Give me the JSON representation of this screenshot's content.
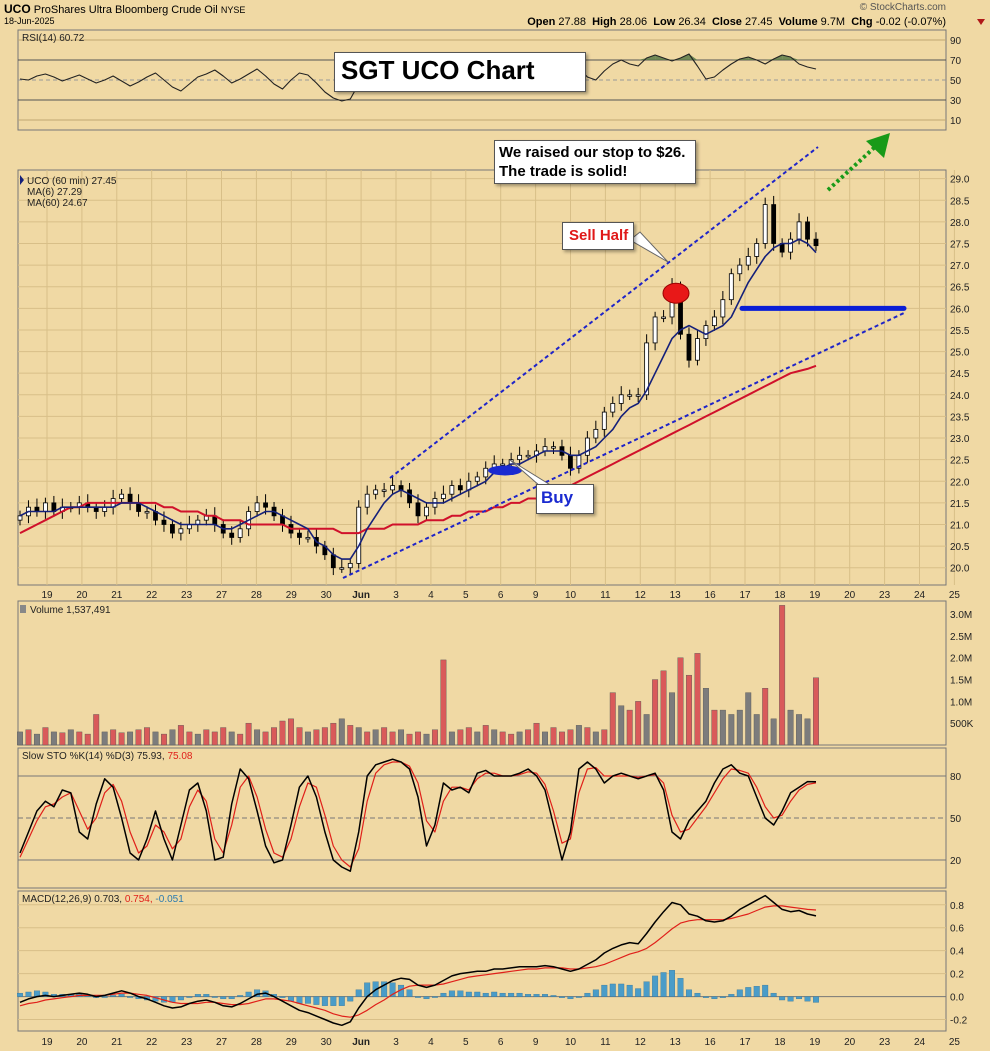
{
  "header": {
    "symbol": "UCO",
    "name": "ProShares Ultra Bloomberg Crude Oil",
    "exchange": "NYSE",
    "date": "18-Jun-2025",
    "open_label": "Open",
    "open": "27.88",
    "high_label": "High",
    "high": "28.06",
    "low_label": "Low",
    "low": "26.34",
    "close_label": "Close",
    "close": "27.45",
    "volume_label": "Volume",
    "volume": "9.7M",
    "chg_label": "Chg",
    "chg": "-0.02 (-0.07%)",
    "source": "© StockCharts.com"
  },
  "annotations": {
    "title": "SGT UCO Chart",
    "stop_note": "We raised our stop to $26.  The trade is solid!",
    "sell_label": "Sell Half",
    "buy_label": "Buy"
  },
  "colors": {
    "bg": "#f0d9a4",
    "ma6": "#15207a",
    "ma60": "#d0112b",
    "trend": "#1f24c8",
    "stop_line": "#0a1ed6",
    "arrow": "#189a18",
    "vol_up": "#7c7c7c",
    "vol_down": "#d95a5a",
    "sto_k": "#000000",
    "sto_d": "#e0201a",
    "macd": "#000000",
    "signal": "#e0201a",
    "hist": "#4a9cc8",
    "rsi": "#222222",
    "rsi_fill": "#5a7a48"
  },
  "chart_data": [
    {
      "type": "line",
      "panel": "rsi",
      "legend": "RSI(14) 60.72",
      "value": 60.72,
      "yticks": [
        90,
        70,
        50,
        30,
        10
      ],
      "ylim": [
        0,
        100
      ],
      "overbought": 70,
      "oversold": 30,
      "series": [
        {
          "values": [
            51,
            50,
            54,
            56,
            53,
            49,
            52,
            55,
            51,
            47,
            50,
            54,
            49,
            44,
            48,
            53,
            57,
            50,
            43,
            39,
            46,
            53,
            56,
            60,
            54,
            47,
            51,
            56,
            61,
            54,
            46,
            41,
            50,
            57,
            55,
            47,
            38,
            32,
            29,
            31,
            46,
            62,
            68,
            63,
            66,
            70,
            61,
            53,
            50,
            56,
            60,
            64,
            60,
            57,
            62,
            65,
            60,
            57,
            63,
            66,
            64,
            60,
            61,
            59,
            63,
            66,
            62,
            53,
            50,
            59,
            66,
            70,
            66,
            64,
            72,
            75,
            72,
            69,
            72,
            76,
            64,
            51,
            53,
            60,
            66,
            71,
            73,
            70,
            66,
            71,
            75,
            73,
            66,
            63,
            61
          ]
        }
      ]
    },
    {
      "type": "line",
      "panel": "price",
      "legend": "UCO (60 min) 27.45",
      "ma6_legend": "MA(6) 27.29",
      "ma60_legend": "MA(60) 24.67",
      "ylim": [
        19.6,
        29.2
      ],
      "yticks": [
        20.0,
        20.5,
        21.0,
        21.5,
        22.0,
        22.5,
        23.0,
        23.5,
        24.0,
        24.5,
        25.0,
        25.5,
        26.0,
        26.5,
        27.0,
        27.5,
        28.0,
        28.5,
        29.0
      ],
      "series": [
        {
          "name": "UCO",
          "values": [
            21.2,
            21.4,
            21.3,
            21.5,
            21.3,
            21.4,
            21.4,
            21.5,
            21.4,
            21.3,
            21.4,
            21.6,
            21.7,
            21.5,
            21.3,
            21.3,
            21.1,
            21.0,
            20.8,
            20.9,
            21.0,
            21.1,
            21.2,
            21.0,
            20.8,
            20.7,
            20.9,
            21.3,
            21.5,
            21.4,
            21.2,
            21.0,
            20.8,
            20.7,
            20.7,
            20.5,
            20.3,
            20.0,
            20.0,
            20.1,
            21.4,
            21.7,
            21.8,
            21.8,
            21.9,
            21.8,
            21.5,
            21.2,
            21.4,
            21.6,
            21.7,
            21.9,
            21.8,
            22.0,
            22.1,
            22.3,
            22.4,
            22.4,
            22.5,
            22.6,
            22.6,
            22.7,
            22.8,
            22.8,
            22.6,
            22.3,
            22.6,
            23.0,
            23.2,
            23.6,
            23.8,
            24.0,
            24.0,
            24.0,
            25.2,
            25.8,
            25.8,
            26.5,
            25.4,
            24.8,
            25.3,
            25.6,
            25.8,
            26.2,
            26.8,
            27.0,
            27.2,
            27.5,
            28.4,
            27.5,
            27.3,
            27.6,
            28.0,
            27.6,
            27.45
          ]
        },
        {
          "name": "MA(6)",
          "values": [
            21.2,
            21.3,
            21.3,
            21.3,
            21.3,
            21.4,
            21.4,
            21.4,
            21.4,
            21.4,
            21.4,
            21.4,
            21.5,
            21.5,
            21.5,
            21.4,
            21.3,
            21.2,
            21.1,
            21.0,
            21.0,
            21.0,
            21.0,
            21.0,
            20.9,
            20.9,
            21.0,
            21.1,
            21.2,
            21.3,
            21.3,
            21.2,
            21.1,
            21.0,
            20.9,
            20.6,
            20.5,
            20.3,
            20.2,
            20.2,
            20.5,
            20.9,
            21.2,
            21.5,
            21.7,
            21.8,
            21.7,
            21.6,
            21.5,
            21.5,
            21.5,
            21.6,
            21.7,
            21.8,
            21.9,
            22.0,
            22.2,
            22.3,
            22.4,
            22.4,
            22.5,
            22.6,
            22.7,
            22.7,
            22.7,
            22.6,
            22.6,
            22.7,
            22.8,
            23.0,
            23.2,
            23.5,
            23.7,
            23.8,
            24.1,
            24.5,
            24.9,
            25.3,
            25.5,
            25.6,
            25.5,
            25.4,
            25.5,
            25.6,
            25.8,
            26.2,
            26.6,
            26.9,
            27.2,
            27.4,
            27.5,
            27.5,
            27.6,
            27.5,
            27.29
          ]
        },
        {
          "name": "MA(60)",
          "values": [
            20.8,
            20.9,
            21.0,
            21.1,
            21.2,
            21.3,
            21.4,
            21.4,
            21.5,
            21.5,
            21.5,
            21.5,
            21.5,
            21.5,
            21.5,
            21.5,
            21.5,
            21.4,
            21.4,
            21.3,
            21.3,
            21.3,
            21.2,
            21.2,
            21.1,
            21.1,
            21.1,
            21.0,
            21.0,
            21.0,
            21.0,
            21.0,
            20.9,
            20.9,
            20.9,
            20.9,
            20.9,
            20.9,
            20.8,
            20.8,
            20.8,
            20.9,
            20.9,
            20.9,
            21.0,
            21.0,
            21.0,
            21.0,
            21.1,
            21.1,
            21.1,
            21.2,
            21.2,
            21.3,
            21.3,
            21.3,
            21.4,
            21.4,
            21.5,
            21.5,
            21.6,
            21.6,
            21.7,
            21.8,
            21.8,
            21.9,
            22.0,
            22.1,
            22.2,
            22.3,
            22.4,
            22.5,
            22.6,
            22.7,
            22.8,
            22.9,
            23.0,
            23.1,
            23.2,
            23.3,
            23.4,
            23.5,
            23.6,
            23.7,
            23.8,
            23.9,
            24.0,
            24.1,
            24.2,
            24.3,
            24.4,
            24.5,
            24.55,
            24.6,
            24.67
          ]
        }
      ],
      "sell_level": 26.35,
      "buy_level": 22.25,
      "stop_level": 26.0
    },
    {
      "type": "bar",
      "panel": "volume",
      "legend": "Volume 1,537,491",
      "yticks": [
        "3.0M",
        "2.5M",
        "2.0M",
        "1.5M",
        "1.0M",
        "500K"
      ],
      "ytick_values": [
        3.0,
        2.5,
        2.0,
        1.5,
        1.0,
        0.5
      ],
      "ylim": [
        0,
        3.3
      ],
      "values": [
        0.3,
        0.35,
        0.25,
        0.4,
        0.3,
        0.28,
        0.35,
        0.3,
        0.25,
        0.7,
        0.3,
        0.35,
        0.28,
        0.3,
        0.35,
        0.4,
        0.3,
        0.25,
        0.35,
        0.45,
        0.3,
        0.25,
        0.35,
        0.3,
        0.4,
        0.3,
        0.25,
        0.5,
        0.35,
        0.3,
        0.4,
        0.55,
        0.6,
        0.4,
        0.3,
        0.35,
        0.4,
        0.5,
        0.6,
        0.45,
        0.4,
        0.3,
        0.35,
        0.4,
        0.3,
        0.35,
        0.25,
        0.3,
        0.25,
        0.35,
        1.95,
        0.3,
        0.35,
        0.4,
        0.3,
        0.45,
        0.35,
        0.3,
        0.25,
        0.3,
        0.35,
        0.5,
        0.3,
        0.4,
        0.3,
        0.35,
        0.45,
        0.4,
        0.3,
        0.35,
        1.2,
        0.9,
        0.8,
        1.0,
        0.7,
        1.5,
        1.7,
        1.2,
        2.0,
        1.6,
        2.1,
        1.3,
        0.8,
        0.8,
        0.7,
        0.8,
        1.2,
        0.7,
        1.3,
        0.6,
        3.2,
        0.8,
        0.7,
        0.6,
        1.54
      ],
      "down": [
        0,
        1,
        0,
        1,
        0,
        1,
        0,
        1,
        1,
        1,
        0,
        1,
        1,
        0,
        1,
        1,
        0,
        1,
        0,
        1,
        1,
        0,
        1,
        1,
        1,
        0,
        1,
        1,
        0,
        1,
        1,
        1,
        1,
        1,
        0,
        1,
        1,
        1,
        0,
        1,
        0,
        1,
        0,
        1,
        1,
        0,
        1,
        1,
        0,
        1,
        1,
        0,
        1,
        1,
        0,
        1,
        0,
        1,
        1,
        0,
        1,
        1,
        0,
        1,
        1,
        1,
        0,
        1,
        0,
        1,
        1,
        0,
        1,
        1,
        0,
        1,
        1,
        0,
        1,
        1,
        1,
        0,
        1,
        0,
        0,
        0,
        0,
        0,
        1,
        0,
        1,
        0,
        0,
        0,
        1
      ]
    },
    {
      "type": "line",
      "panel": "stochastic",
      "legend": "Slow STO %K(14) %D(3) 75.93, 75.08",
      "legend_prefix": "Slow STO %K(14) %D(3) 75.93,",
      "legend_d": "75.08",
      "ylim": [
        0,
        100
      ],
      "yticks": [
        80,
        50,
        20
      ],
      "series": [
        {
          "name": "%K",
          "values": [
            25,
            40,
            55,
            62,
            58,
            70,
            68,
            40,
            35,
            60,
            78,
            72,
            50,
            25,
            20,
            35,
            55,
            35,
            20,
            45,
            70,
            75,
            55,
            20,
            22,
            60,
            85,
            78,
            55,
            30,
            18,
            20,
            45,
            72,
            80,
            65,
            40,
            20,
            15,
            12,
            40,
            80,
            88,
            90,
            92,
            90,
            85,
            65,
            30,
            45,
            75,
            70,
            72,
            68,
            82,
            84,
            80,
            80,
            80,
            82,
            85,
            80,
            70,
            45,
            20,
            40,
            85,
            90,
            85,
            75,
            80,
            82,
            80,
            78,
            80,
            82,
            70,
            40,
            35,
            48,
            55,
            62,
            75,
            85,
            88,
            82,
            80,
            65,
            50,
            45,
            55,
            68,
            72,
            76,
            75.93
          ]
        },
        {
          "name": "%D",
          "values": [
            22,
            35,
            48,
            58,
            60,
            65,
            68,
            55,
            42,
            50,
            68,
            74,
            62,
            40,
            25,
            30,
            45,
            40,
            28,
            35,
            58,
            70,
            62,
            35,
            25,
            45,
            72,
            80,
            65,
            42,
            25,
            22,
            35,
            58,
            75,
            72,
            52,
            30,
            20,
            15,
            28,
            62,
            82,
            88,
            90,
            90,
            87,
            75,
            48,
            40,
            62,
            72,
            72,
            70,
            78,
            82,
            82,
            80,
            80,
            81,
            83,
            82,
            74,
            55,
            32,
            35,
            68,
            85,
            86,
            80,
            80,
            80,
            80,
            79,
            80,
            81,
            75,
            52,
            40,
            42,
            50,
            58,
            68,
            78,
            85,
            84,
            82,
            72,
            58,
            50,
            52,
            62,
            70,
            74,
            75.08
          ]
        }
      ]
    },
    {
      "type": "line",
      "panel": "macd",
      "legend": "MACD(12,26,9) 0.703, 0.754, -0.051",
      "legend_prefix": "MACD(12,26,9) 0.703,",
      "legend_signal": "0.754,",
      "legend_hist": "-0.051",
      "ylim": [
        -0.3,
        0.92
      ],
      "yticks": [
        0.8,
        0.6,
        0.4,
        0.2,
        0.0,
        -0.2
      ],
      "series": [
        {
          "name": "MACD",
          "values": [
            -0.05,
            -0.02,
            0.0,
            0.01,
            0.0,
            0.01,
            0.02,
            0.03,
            0.02,
            0.0,
            0.01,
            0.03,
            0.05,
            0.03,
            0.0,
            -0.02,
            -0.05,
            -0.08,
            -0.1,
            -0.09,
            -0.06,
            -0.04,
            -0.03,
            -0.05,
            -0.08,
            -0.09,
            -0.06,
            -0.02,
            0.02,
            0.03,
            0.0,
            -0.04,
            -0.08,
            -0.12,
            -0.14,
            -0.17,
            -0.2,
            -0.23,
            -0.25,
            -0.22,
            -0.1,
            0.0,
            0.06,
            0.1,
            0.14,
            0.16,
            0.15,
            0.1,
            0.08,
            0.1,
            0.14,
            0.18,
            0.2,
            0.21,
            0.22,
            0.22,
            0.24,
            0.24,
            0.25,
            0.26,
            0.26,
            0.26,
            0.27,
            0.26,
            0.24,
            0.22,
            0.24,
            0.28,
            0.32,
            0.38,
            0.42,
            0.45,
            0.47,
            0.46,
            0.55,
            0.65,
            0.74,
            0.82,
            0.8,
            0.72,
            0.7,
            0.66,
            0.65,
            0.66,
            0.7,
            0.76,
            0.8,
            0.84,
            0.88,
            0.82,
            0.76,
            0.74,
            0.75,
            0.72,
            0.703
          ]
        },
        {
          "name": "Signal",
          "values": [
            -0.08,
            -0.06,
            -0.05,
            -0.03,
            -0.02,
            -0.01,
            0.0,
            0.01,
            0.01,
            0.01,
            0.01,
            0.02,
            0.03,
            0.03,
            0.02,
            0.01,
            -0.01,
            -0.03,
            -0.05,
            -0.06,
            -0.06,
            -0.06,
            -0.05,
            -0.05,
            -0.06,
            -0.07,
            -0.07,
            -0.06,
            -0.04,
            -0.02,
            -0.02,
            -0.03,
            -0.04,
            -0.06,
            -0.08,
            -0.1,
            -0.12,
            -0.15,
            -0.17,
            -0.18,
            -0.16,
            -0.12,
            -0.07,
            -0.03,
            0.02,
            0.06,
            0.09,
            0.1,
            0.1,
            0.1,
            0.11,
            0.13,
            0.15,
            0.17,
            0.18,
            0.19,
            0.2,
            0.21,
            0.22,
            0.23,
            0.24,
            0.24,
            0.25,
            0.25,
            0.25,
            0.24,
            0.24,
            0.25,
            0.26,
            0.28,
            0.31,
            0.34,
            0.37,
            0.39,
            0.42,
            0.47,
            0.53,
            0.59,
            0.64,
            0.66,
            0.67,
            0.67,
            0.67,
            0.67,
            0.68,
            0.7,
            0.72,
            0.75,
            0.78,
            0.79,
            0.79,
            0.78,
            0.77,
            0.76,
            0.754
          ]
        }
      ]
    }
  ],
  "x_axis": {
    "tick_labels": [
      "19",
      "20",
      "21",
      "22",
      "23",
      "27",
      "28",
      "29",
      "30",
      "Jun",
      "3",
      "4",
      "5",
      "6",
      "9",
      "10",
      "11",
      "12",
      "13",
      "16",
      "17",
      "18",
      "19",
      "20",
      "23",
      "24",
      "25"
    ]
  }
}
